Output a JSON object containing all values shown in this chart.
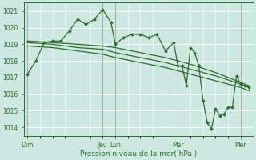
{
  "bg_color": "#cce8e0",
  "plot_bg_color": "#cce8e0",
  "grid_color": "#ffffff",
  "line_color": "#2d6e2d",
  "vline_color": "#888888",
  "xlabel": "Pression niveau de la mer( hPa )",
  "ylim": [
    1013.5,
    1021.5
  ],
  "yticks": [
    1014,
    1015,
    1016,
    1017,
    1018,
    1019,
    1020,
    1021
  ],
  "day_labels": [
    "Dim",
    "Jeu",
    "Lun",
    "Mar",
    "Mer"
  ],
  "day_positions": [
    0,
    72,
    84,
    144,
    204
  ],
  "xlim": [
    -3,
    216
  ],
  "series1_x": [
    0,
    8,
    16,
    24,
    32,
    40,
    48,
    56,
    64,
    72,
    80,
    84,
    92,
    100,
    108,
    116,
    124,
    132,
    140,
    144,
    148,
    152,
    156,
    160,
    164,
    168,
    172,
    176,
    180,
    184,
    188,
    192,
    196,
    200,
    204,
    208,
    212
  ],
  "series1_y": [
    1017.2,
    1018.0,
    1019.1,
    1019.2,
    1019.2,
    1019.8,
    1020.5,
    1020.2,
    1020.5,
    1021.1,
    1020.3,
    1019.0,
    1019.4,
    1019.6,
    1019.6,
    1019.4,
    1019.6,
    1018.6,
    1019.1,
    1017.7,
    1017.7,
    1016.5,
    1018.8,
    1018.5,
    1017.7,
    1015.6,
    1014.3,
    1013.9,
    1015.1,
    1014.7,
    1014.8,
    1015.2,
    1015.2,
    1017.1,
    1016.6,
    1016.5,
    1016.4
  ],
  "series2_x": [
    0,
    24,
    48,
    72,
    84,
    108,
    132,
    156,
    180,
    204,
    212
  ],
  "series2_y": [
    1019.2,
    1019.1,
    1019.0,
    1018.9,
    1018.8,
    1018.5,
    1018.2,
    1017.8,
    1017.3,
    1016.7,
    1016.5
  ],
  "series3_x": [
    0,
    24,
    48,
    72,
    84,
    108,
    132,
    156,
    180,
    204,
    212
  ],
  "series3_y": [
    1019.1,
    1019.0,
    1018.8,
    1018.7,
    1018.5,
    1018.2,
    1017.9,
    1017.5,
    1017.1,
    1016.6,
    1016.4
  ],
  "series4_x": [
    0,
    24,
    48,
    72,
    84,
    108,
    132,
    156,
    180,
    204,
    212
  ],
  "series4_y": [
    1018.9,
    1018.8,
    1018.6,
    1018.4,
    1018.2,
    1017.9,
    1017.6,
    1017.2,
    1016.8,
    1016.4,
    1016.2
  ],
  "vline_positions": [
    0,
    72,
    84,
    144,
    204
  ],
  "figsize": [
    3.2,
    2.0
  ],
  "dpi": 100,
  "label_fontsize": 5.5,
  "xlabel_fontsize": 6.5,
  "marker_size": 2.0,
  "line_width": 0.9
}
